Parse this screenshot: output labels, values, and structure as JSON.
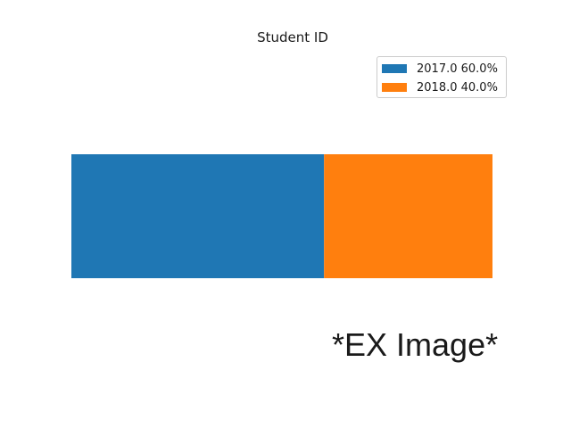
{
  "chart_data": {
    "type": "bar",
    "orientation": "horizontal-stacked-percent",
    "title": "Student ID",
    "categories": [
      ""
    ],
    "series": [
      {
        "name": "2017.0 60.0%",
        "values": [
          60.0
        ],
        "color": "#1f77b4"
      },
      {
        "name": "2018.0 40.0%",
        "values": [
          40.0
        ],
        "color": "#ff7f0e"
      }
    ],
    "xlim": [
      0,
      100
    ],
    "grid": false,
    "axes_visible": false,
    "legend_position": "top-right"
  },
  "watermark": "*EX Image*"
}
